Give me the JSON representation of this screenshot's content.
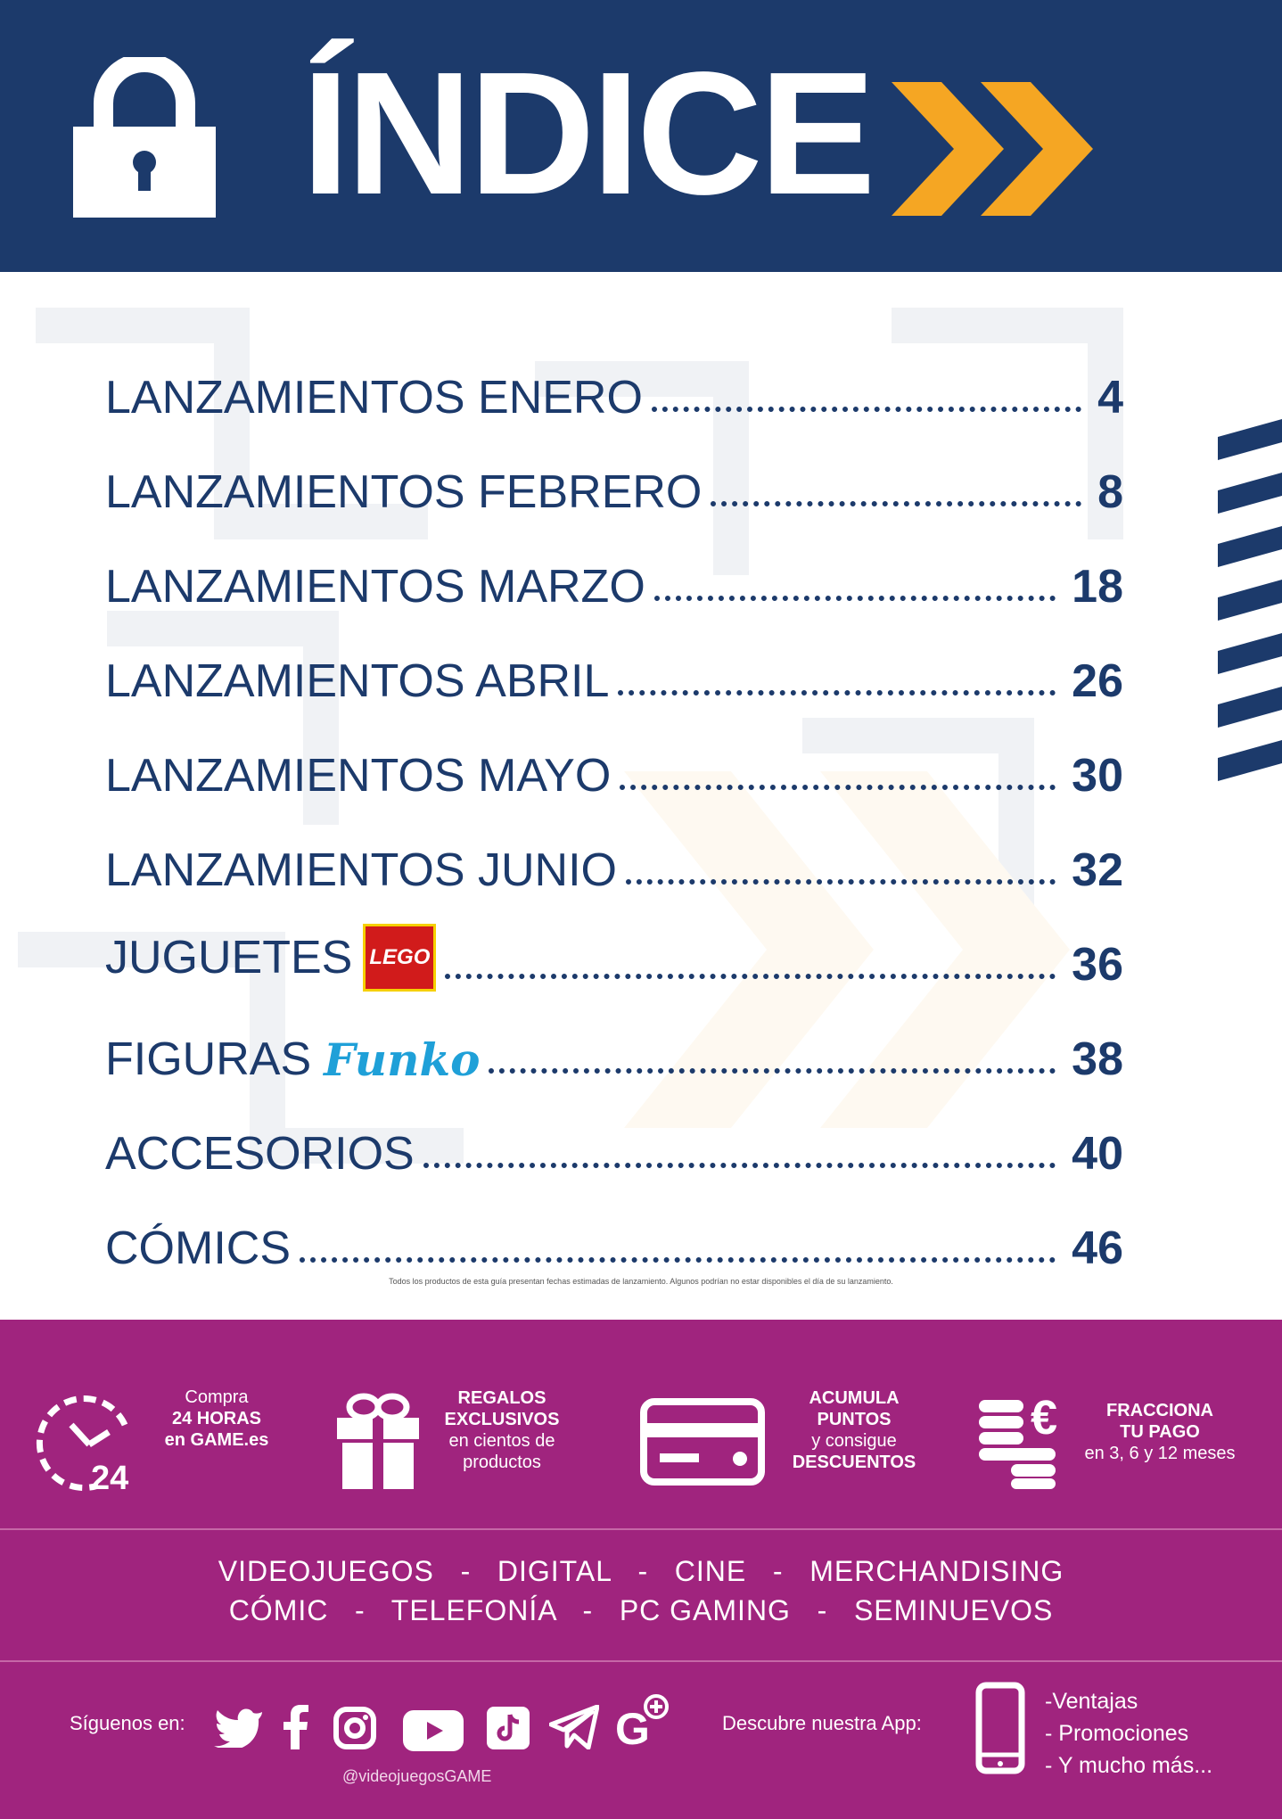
{
  "header": {
    "title": "ÍNDICE",
    "icons": [
      "padlock-icon",
      "double-chevron-icon"
    ],
    "colors": {
      "background": "#1c3a6b",
      "accent": "#f5a623"
    }
  },
  "toc": [
    {
      "label": "LANZAMIENTOS ENERO",
      "page": "4"
    },
    {
      "label": "LANZAMIENTOS FEBRERO",
      "page": "8"
    },
    {
      "label": "LANZAMIENTOS MARZO",
      "page": "18"
    },
    {
      "label": "LANZAMIENTOS ABRIL",
      "page": "26"
    },
    {
      "label": "LANZAMIENTOS MAYO",
      "page": "30"
    },
    {
      "label": "LANZAMIENTOS JUNIO",
      "page": "32"
    },
    {
      "label": "JUGUETES",
      "brand": "LEGO",
      "page": "36"
    },
    {
      "label": "FIGURAS",
      "brand": "Funko",
      "page": "38"
    },
    {
      "label": "ACCESORIOS",
      "page": "40"
    },
    {
      "label": "CÓMICS",
      "page": "46"
    }
  ],
  "fine_print": "Todos los productos de esta guía presentan fechas estimadas de lanzamiento. Algunos podrían no estar disponibles el día de su lanzamiento.",
  "features": [
    {
      "line1": "Compra",
      "line2": "24 HORAS",
      "line3": "en GAME.es",
      "icon": "clock-24-icon",
      "badge": "24"
    },
    {
      "line1": "REGALOS",
      "line2": "EXCLUSIVOS",
      "line3": "en cientos de",
      "line4": "productos",
      "icon": "gift-icon"
    },
    {
      "line1": "ACUMULA",
      "line2": "PUNTOS",
      "line3": "y consigue",
      "line4": "DESCUENTOS",
      "icon": "card-icon"
    },
    {
      "line1": "FRACCIONA",
      "line2": "TU PAGO",
      "line3": "en 3, 6 y 12 meses",
      "icon": "coins-euro-icon"
    }
  ],
  "categories": {
    "line1": [
      "VIDEOJUEGOS",
      "DIGITAL",
      "CINE",
      "MERCHANDISING"
    ],
    "line2": [
      "CÓMIC",
      "TELEFONÍA",
      "PC GAMING",
      "SEMINUEVOS"
    ],
    "separator": "-"
  },
  "footer": {
    "follow_label": "Síguenos en:",
    "handle": "@videojuegosGAME",
    "social_icons": [
      "twitter-icon",
      "facebook-icon",
      "instagram-icon",
      "youtube-icon",
      "tiktok-icon",
      "telegram-icon",
      "google-plus-icon"
    ],
    "app_label": "Descubre nuestra App:",
    "app_items": [
      "-Ventajas",
      "- Promociones",
      "- Y mucho más..."
    ],
    "band_color": "#a0247e"
  }
}
